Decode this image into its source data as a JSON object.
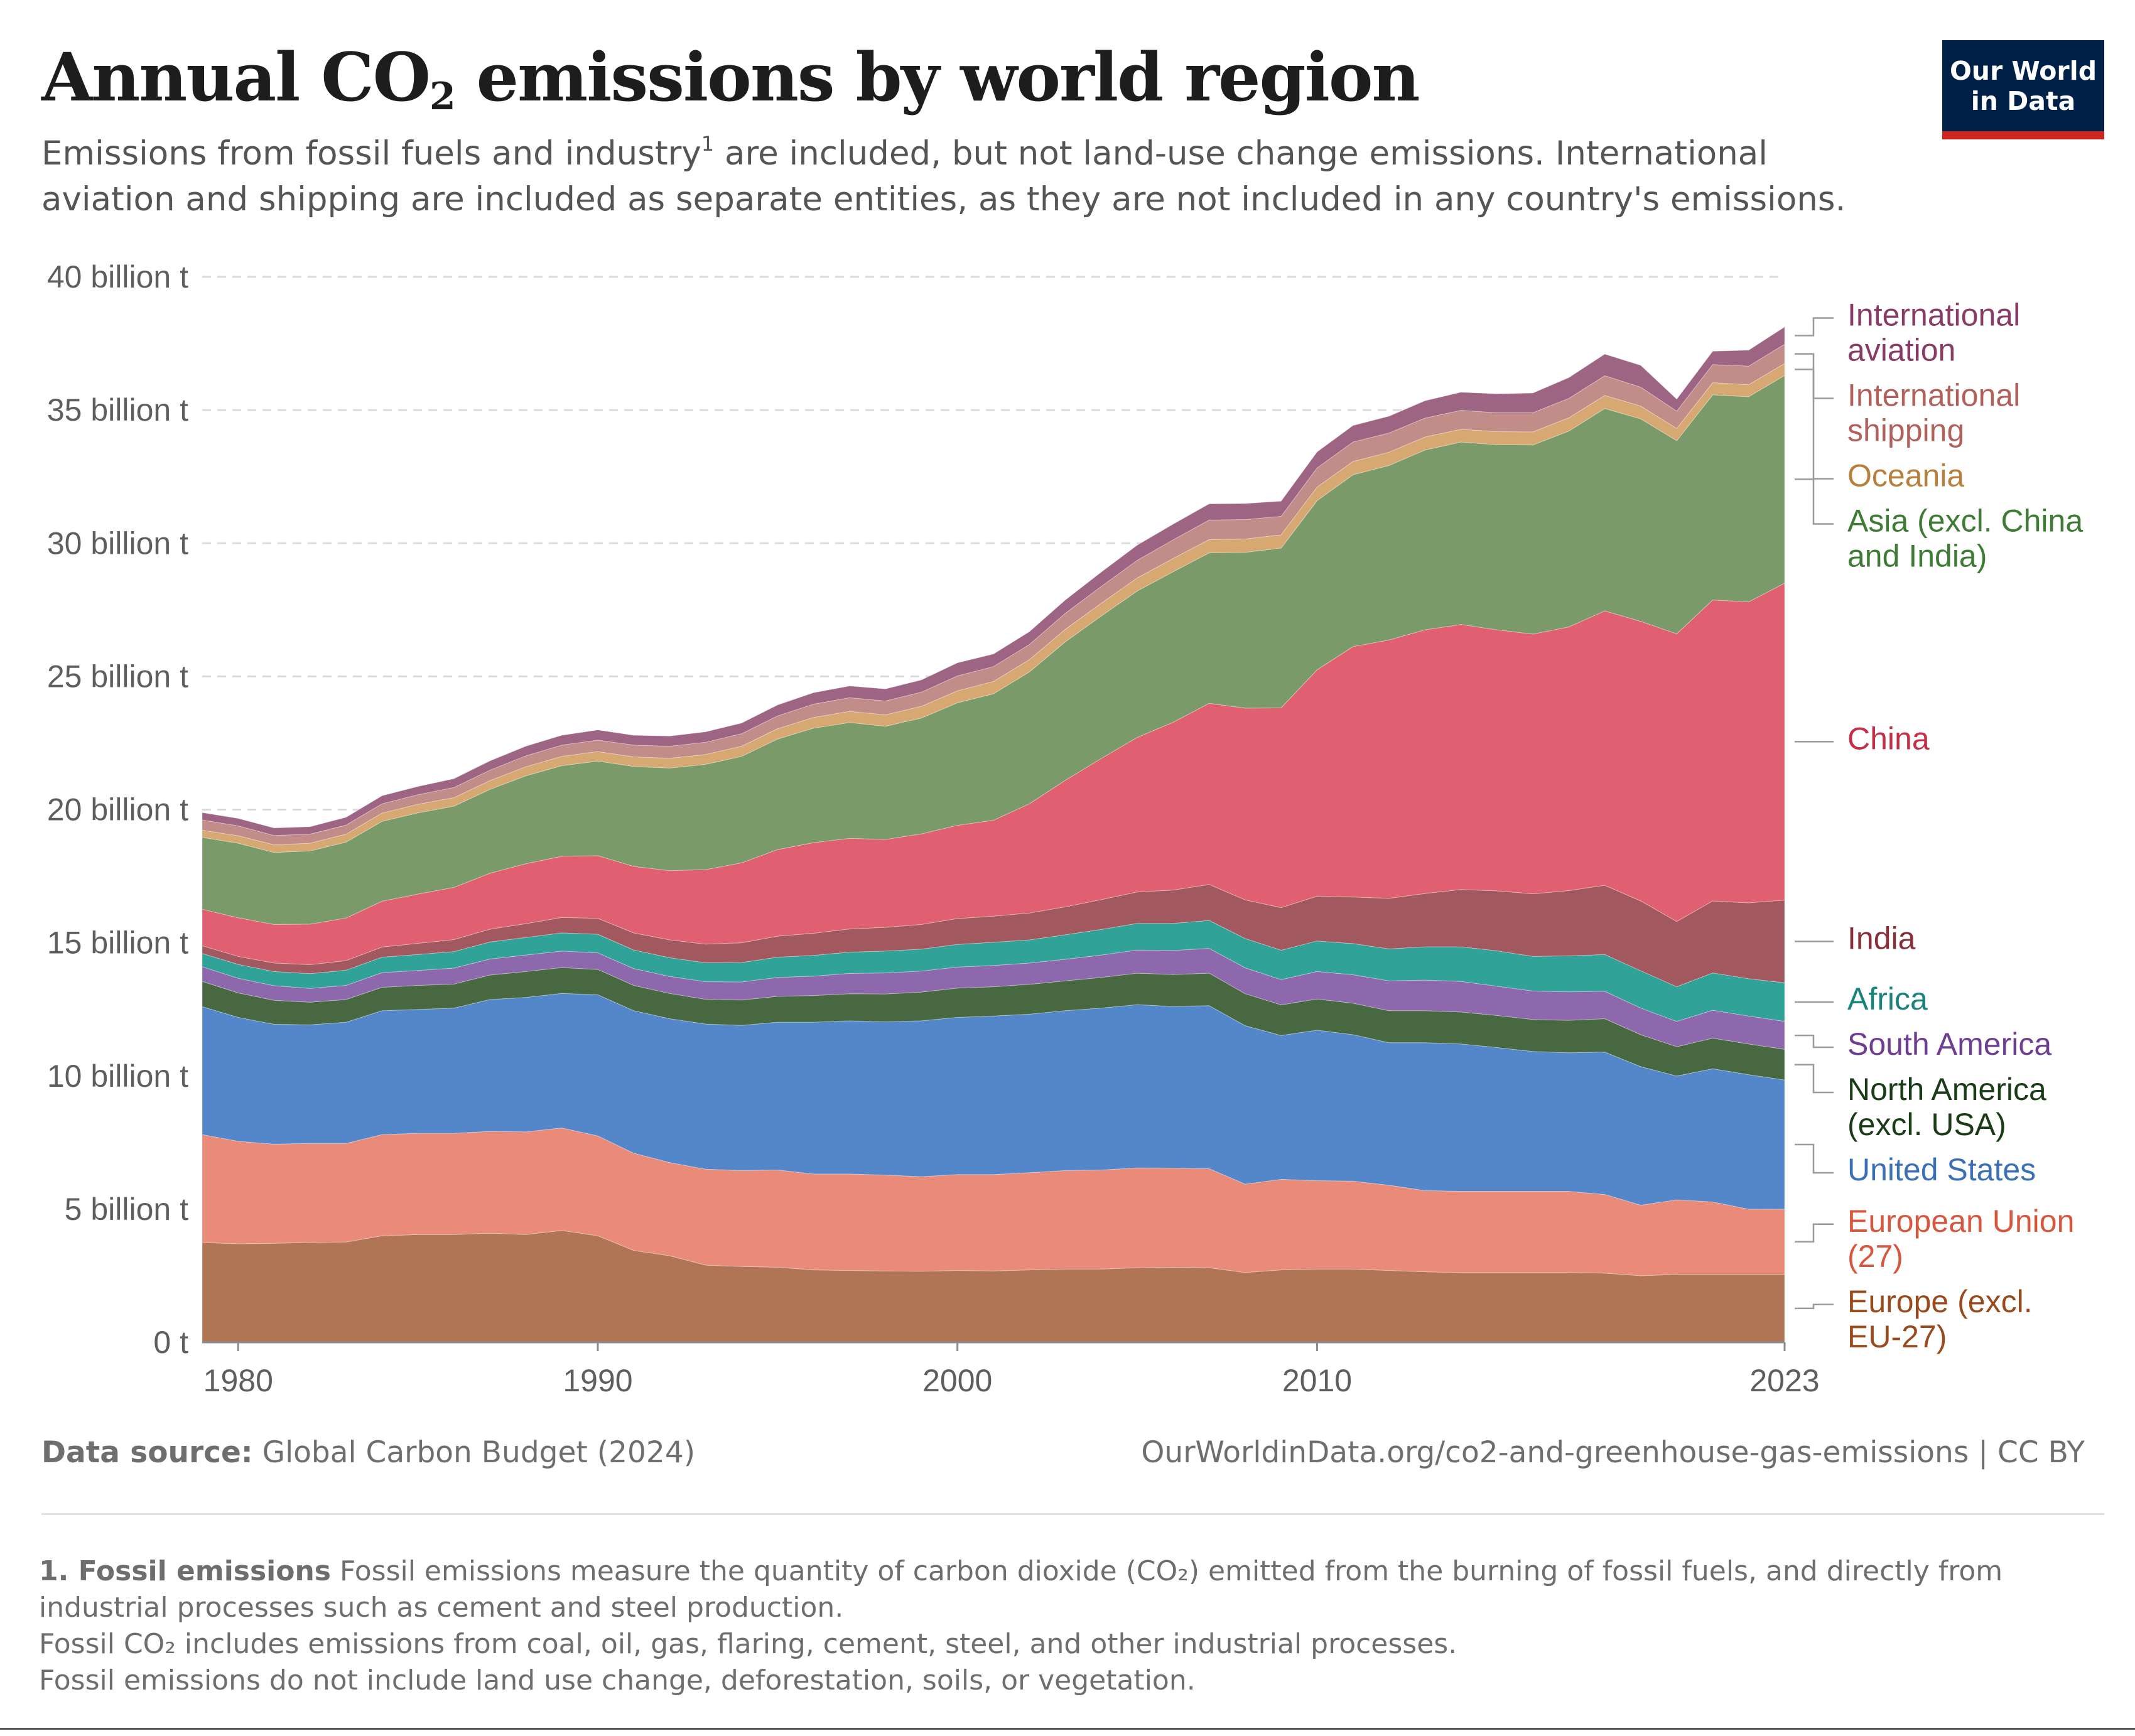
{
  "header": {
    "title_pre": "Annual CO",
    "title_sub": "2",
    "title_post": " emissions by world region",
    "subtitle_a": "Emissions from fossil fuels and industry",
    "subtitle_sup": "1",
    "subtitle_b": " are included, but not land-use change emissions. International aviation and shipping are included as separate entities, as they are not included in any country's emissions.",
    "logo_line1": "Our World",
    "logo_line2": "in Data"
  },
  "footer": {
    "source_label": "Data source:",
    "source_text": " Global Carbon Budget (2024)",
    "url": "OurWorldinData.org/co2-and-greenhouse-gas-emissions | CC BY",
    "note_title": "1. Fossil emissions",
    "note_line1": " Fossil emissions measure the quantity of carbon dioxide (CO₂) emitted from the burning of fossil fuels, and directly from industrial processes such as cement and steel production.",
    "note_line2": "Fossil CO₂ includes emissions from coal, oil, gas, flaring, cement, steel, and other industrial processes.",
    "note_line3": "Fossil emissions do not include land use change, deforestation, soils, or vegetation."
  },
  "chart_data": {
    "type": "area",
    "stacked": true,
    "title": "Annual CO₂ emissions by world region",
    "ylim": [
      0,
      40
    ],
    "y_unit": "billion t",
    "y_ticks": [
      {
        "value": 0,
        "label": "0 t"
      },
      {
        "value": 5,
        "label": "5 billion t"
      },
      {
        "value": 10,
        "label": "10 billion t"
      },
      {
        "value": 15,
        "label": "15 billion t"
      },
      {
        "value": 20,
        "label": "20 billion t"
      },
      {
        "value": 25,
        "label": "25 billion t"
      },
      {
        "value": 30,
        "label": "30 billion t"
      },
      {
        "value": 35,
        "label": "35 billion t"
      },
      {
        "value": 40,
        "label": "40 billion t"
      }
    ],
    "x_ticks": [
      1980,
      1990,
      2000,
      2010,
      2023
    ],
    "grid": "horizontal dashed",
    "legend": "right, inline labels",
    "x": [
      1979,
      1980,
      1981,
      1982,
      1983,
      1984,
      1985,
      1986,
      1987,
      1988,
      1989,
      1990,
      1991,
      1992,
      1993,
      1994,
      1995,
      1996,
      1997,
      1998,
      1999,
      2000,
      2001,
      2002,
      2003,
      2004,
      2005,
      2006,
      2007,
      2008,
      2009,
      2010,
      2011,
      2012,
      2013,
      2014,
      2015,
      2016,
      2017,
      2018,
      2019,
      2020,
      2021,
      2022,
      2023
    ],
    "series": [
      {
        "name": "Europe (excl. EU-27)",
        "color": "#b07554",
        "label_color": "#9a4b1e",
        "values": [
          3.75,
          3.7,
          3.72,
          3.75,
          3.77,
          4.0,
          4.05,
          4.05,
          4.1,
          4.05,
          4.2,
          4.0,
          3.45,
          3.25,
          2.9,
          2.85,
          2.82,
          2.72,
          2.7,
          2.68,
          2.67,
          2.7,
          2.68,
          2.72,
          2.75,
          2.75,
          2.8,
          2.82,
          2.8,
          2.62,
          2.72,
          2.75,
          2.75,
          2.7,
          2.65,
          2.62,
          2.62,
          2.62,
          2.62,
          2.6,
          2.5,
          2.55,
          2.55,
          2.55,
          2.55
        ]
      },
      {
        "name": "European Union (27)",
        "color": "#ea8a79",
        "label_color": "#d6573e",
        "values": [
          4.05,
          3.85,
          3.72,
          3.72,
          3.7,
          3.8,
          3.8,
          3.8,
          3.82,
          3.85,
          3.85,
          3.75,
          3.65,
          3.5,
          3.6,
          3.6,
          3.65,
          3.6,
          3.62,
          3.6,
          3.55,
          3.6,
          3.62,
          3.65,
          3.7,
          3.72,
          3.75,
          3.72,
          3.72,
          3.32,
          3.4,
          3.32,
          3.3,
          3.2,
          3.05,
          3.05,
          3.05,
          3.05,
          3.05,
          2.95,
          2.65,
          2.8,
          2.72,
          2.45,
          2.45
        ]
      },
      {
        "name": "United States",
        "color": "#5487c9",
        "label_color": "#3b6fb6",
        "values": [
          4.8,
          4.65,
          4.5,
          4.45,
          4.55,
          4.65,
          4.65,
          4.7,
          4.95,
          5.05,
          5.05,
          5.3,
          5.35,
          5.4,
          5.45,
          5.45,
          5.55,
          5.7,
          5.75,
          5.75,
          5.85,
          5.9,
          5.95,
          5.95,
          6.0,
          6.08,
          6.13,
          6.07,
          6.12,
          5.95,
          5.4,
          5.65,
          5.5,
          5.35,
          5.55,
          5.53,
          5.4,
          5.25,
          5.2,
          5.35,
          5.2,
          4.65,
          5.0,
          5.05,
          4.85
        ]
      },
      {
        "name": "North America (excl. USA)",
        "color": "#476841",
        "label_color": "#1a3d17",
        "values": [
          0.95,
          0.92,
          0.9,
          0.85,
          0.85,
          0.88,
          0.9,
          0.9,
          0.92,
          0.97,
          0.97,
          0.95,
          0.95,
          0.95,
          0.93,
          0.95,
          0.97,
          1.0,
          1.02,
          1.05,
          1.08,
          1.1,
          1.1,
          1.12,
          1.12,
          1.15,
          1.18,
          1.2,
          1.22,
          1.2,
          1.15,
          1.17,
          1.18,
          1.2,
          1.2,
          1.2,
          1.2,
          1.2,
          1.22,
          1.25,
          1.2,
          1.1,
          1.15,
          1.15,
          1.15
        ]
      },
      {
        "name": "South America",
        "color": "#8e68ac",
        "label_color": "#6d3e91",
        "values": [
          0.55,
          0.55,
          0.55,
          0.52,
          0.53,
          0.55,
          0.56,
          0.6,
          0.6,
          0.62,
          0.62,
          0.62,
          0.63,
          0.64,
          0.66,
          0.68,
          0.71,
          0.73,
          0.76,
          0.79,
          0.79,
          0.79,
          0.8,
          0.8,
          0.81,
          0.84,
          0.87,
          0.9,
          0.93,
          0.97,
          0.95,
          1.03,
          1.07,
          1.12,
          1.15,
          1.15,
          1.1,
          1.07,
          1.07,
          1.03,
          1.0,
          0.95,
          1.05,
          1.05,
          1.05
        ]
      },
      {
        "name": "Africa",
        "color": "#31a297",
        "label_color": "#18827b",
        "values": [
          0.5,
          0.52,
          0.53,
          0.55,
          0.57,
          0.58,
          0.6,
          0.62,
          0.64,
          0.66,
          0.68,
          0.7,
          0.7,
          0.7,
          0.71,
          0.73,
          0.76,
          0.78,
          0.8,
          0.82,
          0.82,
          0.85,
          0.87,
          0.87,
          0.92,
          0.96,
          1.0,
          1.02,
          1.05,
          1.1,
          1.1,
          1.15,
          1.17,
          1.2,
          1.25,
          1.3,
          1.33,
          1.3,
          1.35,
          1.38,
          1.4,
          1.3,
          1.4,
          1.4,
          1.45
        ]
      },
      {
        "name": "India",
        "color": "#a2585f",
        "label_color": "#883039",
        "values": [
          0.29,
          0.3,
          0.32,
          0.34,
          0.36,
          0.38,
          0.42,
          0.45,
          0.48,
          0.52,
          0.58,
          0.6,
          0.64,
          0.67,
          0.7,
          0.74,
          0.79,
          0.83,
          0.87,
          0.89,
          0.93,
          0.97,
          0.98,
          1.01,
          1.05,
          1.12,
          1.18,
          1.25,
          1.35,
          1.45,
          1.6,
          1.68,
          1.75,
          1.9,
          2.0,
          2.15,
          2.25,
          2.35,
          2.45,
          2.6,
          2.62,
          2.45,
          2.7,
          2.85,
          3.1
        ]
      },
      {
        "name": "China",
        "color": "#e06072",
        "label_color": "#c42e46",
        "values": [
          1.37,
          1.45,
          1.45,
          1.52,
          1.6,
          1.72,
          1.85,
          1.96,
          2.1,
          2.25,
          2.3,
          2.35,
          2.5,
          2.6,
          2.8,
          3.0,
          3.25,
          3.4,
          3.4,
          3.3,
          3.4,
          3.5,
          3.6,
          4.1,
          4.75,
          5.3,
          5.8,
          6.3,
          6.8,
          7.2,
          7.5,
          8.5,
          9.4,
          9.7,
          9.9,
          9.95,
          9.8,
          9.75,
          9.9,
          10.3,
          10.5,
          10.8,
          11.3,
          11.3,
          11.9
        ]
      },
      {
        "name": "Asia (excl. China and India)",
        "color": "#7a9b69",
        "label_color": "#3e7b35",
        "values": [
          2.7,
          2.8,
          2.7,
          2.75,
          2.85,
          3.0,
          3.05,
          3.05,
          3.15,
          3.3,
          3.4,
          3.55,
          3.75,
          3.85,
          3.95,
          4.0,
          4.15,
          4.3,
          4.35,
          4.25,
          4.35,
          4.6,
          4.75,
          4.95,
          5.2,
          5.35,
          5.5,
          5.65,
          5.65,
          5.85,
          6.0,
          6.35,
          6.45,
          6.55,
          6.75,
          6.85,
          6.95,
          7.1,
          7.35,
          7.6,
          7.6,
          7.25,
          7.7,
          7.7,
          7.8
        ]
      },
      {
        "name": "Oceania",
        "color": "#d8a872",
        "label_color": "#b77f3c",
        "values": [
          0.27,
          0.28,
          0.29,
          0.29,
          0.3,
          0.31,
          0.32,
          0.32,
          0.33,
          0.34,
          0.35,
          0.36,
          0.36,
          0.37,
          0.37,
          0.38,
          0.39,
          0.4,
          0.42,
          0.43,
          0.44,
          0.45,
          0.46,
          0.46,
          0.47,
          0.48,
          0.49,
          0.5,
          0.5,
          0.5,
          0.5,
          0.51,
          0.5,
          0.5,
          0.49,
          0.48,
          0.49,
          0.49,
          0.5,
          0.49,
          0.48,
          0.46,
          0.46,
          0.45,
          0.45
        ]
      },
      {
        "name": "International shipping",
        "color": "#c28c88",
        "label_color": "#b1615b",
        "values": [
          0.38,
          0.37,
          0.35,
          0.34,
          0.34,
          0.35,
          0.36,
          0.38,
          0.39,
          0.41,
          0.42,
          0.43,
          0.44,
          0.45,
          0.46,
          0.47,
          0.48,
          0.5,
          0.51,
          0.52,
          0.53,
          0.56,
          0.56,
          0.57,
          0.6,
          0.63,
          0.66,
          0.7,
          0.73,
          0.73,
          0.69,
          0.72,
          0.73,
          0.72,
          0.71,
          0.71,
          0.71,
          0.72,
          0.73,
          0.74,
          0.71,
          0.65,
          0.68,
          0.7,
          0.72
        ]
      },
      {
        "name": "International aviation",
        "color": "#9d6583",
        "label_color": "#883c65",
        "values": [
          0.28,
          0.28,
          0.28,
          0.28,
          0.29,
          0.3,
          0.31,
          0.33,
          0.35,
          0.36,
          0.37,
          0.38,
          0.37,
          0.38,
          0.39,
          0.4,
          0.41,
          0.43,
          0.44,
          0.45,
          0.46,
          0.49,
          0.47,
          0.48,
          0.5,
          0.54,
          0.57,
          0.59,
          0.61,
          0.6,
          0.57,
          0.6,
          0.62,
          0.63,
          0.65,
          0.68,
          0.71,
          0.74,
          0.78,
          0.81,
          0.82,
          0.45,
          0.5,
          0.6,
          0.65
        ]
      }
    ]
  }
}
